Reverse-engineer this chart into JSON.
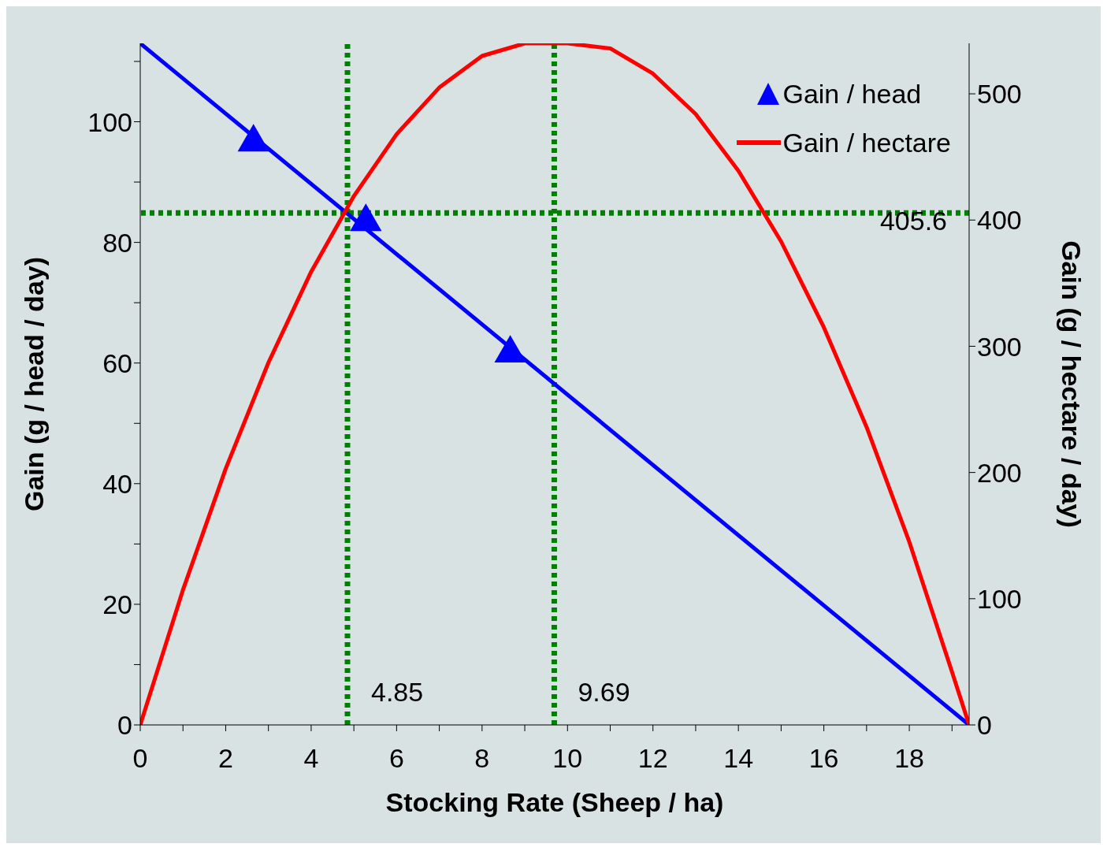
{
  "chart_data": {
    "type": "line",
    "xlabel": "Stocking Rate (Sheep / ha)",
    "ylabel": "Gain (g / head / day)",
    "y2label": "Gain (g / hectare / day)",
    "xlim": [
      0,
      19.4
    ],
    "xticks": [
      0,
      {
        "value": 1,
        "label": null
      },
      2,
      {
        "value": 3,
        "label": null
      },
      4,
      {
        "value": 5,
        "label": null
      },
      6,
      {
        "value": 7,
        "label": null
      },
      8,
      {
        "value": 9,
        "label": null
      },
      10,
      {
        "value": 11,
        "label": null
      },
      12,
      {
        "value": 13,
        "label": null
      },
      14,
      {
        "value": 15,
        "label": null
      },
      16,
      {
        "value": 17,
        "label": null
      },
      18,
      {
        "value": 19,
        "label": null
      }
    ],
    "ylim": [
      0,
      113
    ],
    "yticks": [
      0,
      {
        "value": 10,
        "label": null
      },
      20,
      {
        "value": 30,
        "label": null
      },
      40,
      {
        "value": 50,
        "label": null
      },
      60,
      {
        "value": 70,
        "label": null
      },
      80,
      {
        "value": 90,
        "label": null
      },
      100,
      {
        "value": 110,
        "label": null
      }
    ],
    "y2lim": [
      0,
      540
    ],
    "y2ticks": [
      0,
      100,
      200,
      300,
      400,
      500
    ],
    "grid": false,
    "legend": "top right",
    "series": [
      {
        "name": "Gain / head",
        "type": "scatter",
        "marker": "triangle",
        "color": "#0000ff",
        "x": [
          2.65,
          5.28,
          8.66
        ],
        "values": [
          96.6,
          83.4,
          61.6
        ]
      },
      {
        "marker": "none",
        "color": "#0000ff",
        "x": [
          0,
          19.4
        ],
        "values": [
          113,
          0
        ]
      },
      {
        "name": "Gain / hectare",
        "marker": "none",
        "axis": "y2",
        "color": "#ff0000",
        "x": [
          0,
          1,
          2,
          3,
          4,
          5,
          6,
          7,
          8,
          9,
          10,
          11,
          12,
          13,
          14,
          15,
          16,
          17,
          18,
          19,
          19.4
        ],
        "values": [
          0,
          107,
          203,
          287,
          359,
          419,
          468,
          505,
          530,
          540,
          540,
          536,
          516,
          484,
          439,
          383,
          315,
          236,
          145,
          42,
          0
        ]
      }
    ],
    "ref_lines": [
      {
        "axis": "x",
        "value": 4.85,
        "label": "4.85",
        "color": "#008000",
        "line_style": "dotted"
      },
      {
        "axis": "x",
        "value": 9.69,
        "label": "9.69",
        "color": "#008000",
        "line_style": "dotted"
      },
      {
        "axis": "y2",
        "value": 405.6,
        "label": "405.6",
        "color": "#008000",
        "line_style": "dotted"
      }
    ]
  }
}
